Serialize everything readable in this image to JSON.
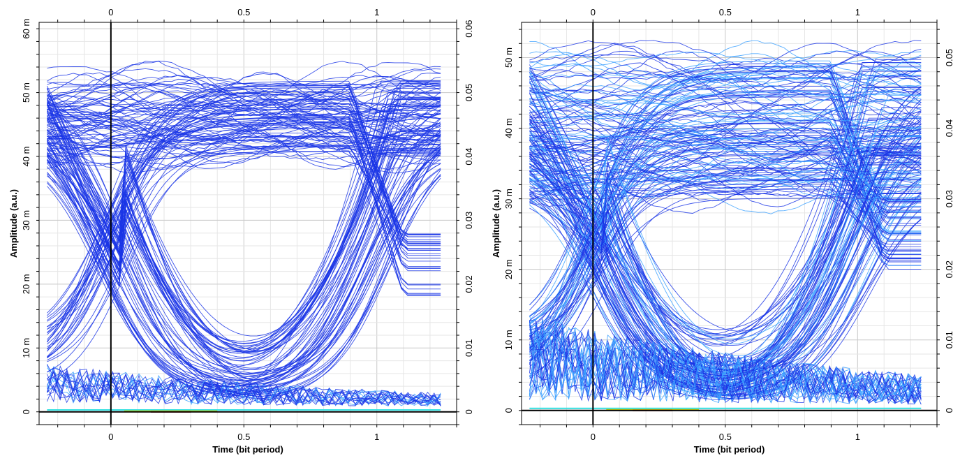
{
  "chart_data": [
    {
      "type": "line",
      "subtype": "eye-diagram",
      "title": "",
      "xlabel": "Time (bit period)",
      "ylabel": "Amplitude (a.u.)",
      "xlim": [
        -0.27,
        1.3
      ],
      "ylim": [
        -0.002,
        0.061
      ],
      "x_ticks": [
        0,
        0.5,
        1
      ],
      "x_tick_labels": [
        "0",
        "0.5",
        "1"
      ],
      "y_left_ticks": [
        0,
        0.01,
        0.02,
        0.03,
        0.04,
        0.05,
        0.06
      ],
      "y_left_tick_labels": [
        "0",
        "10 m",
        "20 m",
        "30 m",
        "40 m",
        "50 m",
        "60 m"
      ],
      "y_right_ticks": [
        0,
        0.01,
        0.02,
        0.03,
        0.04,
        0.05,
        0.06
      ],
      "y_right_tick_labels": [
        "0",
        "0.01",
        "0.02",
        "0.03",
        "0.04",
        "0.05",
        "0.06"
      ],
      "grid": true,
      "trace_color": "#1a35e6",
      "density_colors": [
        "#1a35e6",
        "#3aa0ff",
        "#30e0e0",
        "#e0e000",
        "#c00000"
      ],
      "eye": {
        "x_range": [
          -0.24,
          1.24
        ],
        "high_level": [
          0.04,
          0.052
        ],
        "crossing_level": 0.023,
        "low_level_rising": [
          0.003,
          0.012
        ],
        "floor": [
          0.0,
          0.001
        ]
      }
    },
    {
      "type": "line",
      "subtype": "eye-diagram",
      "title": "",
      "xlabel": "Time (bit period)",
      "ylabel": "Amplitude (a.u.)",
      "xlim": [
        -0.27,
        1.3
      ],
      "ylim": [
        -0.002,
        0.055
      ],
      "x_ticks": [
        0,
        0.5,
        1
      ],
      "x_tick_labels": [
        "0",
        "0.5",
        "1"
      ],
      "y_left_ticks": [
        0,
        0.01,
        0.02,
        0.03,
        0.04,
        0.05
      ],
      "y_left_tick_labels": [
        "0",
        "10 m",
        "20 m",
        "30 m",
        "40 m",
        "50 m"
      ],
      "y_right_ticks": [
        0,
        0.01,
        0.02,
        0.03,
        0.04,
        0.05
      ],
      "y_right_tick_labels": [
        "0",
        "0.01",
        "0.02",
        "0.03",
        "0.04",
        "0.05"
      ],
      "grid": true,
      "trace_color": "#1a35e6",
      "density_colors": [
        "#1a35e6",
        "#3aa0ff",
        "#30e0e0",
        "#e0e000",
        "#c00000"
      ],
      "eye": {
        "x_range": [
          -0.24,
          1.24
        ],
        "high_level": [
          0.03,
          0.05
        ],
        "crossing_level": 0.025,
        "low_level_rising": [
          0.002,
          0.012
        ],
        "floor": [
          0.0,
          0.005
        ]
      }
    }
  ]
}
